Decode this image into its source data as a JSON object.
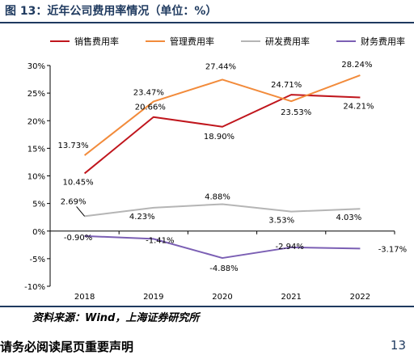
{
  "header": {
    "title": "图 13：近年公司费用率情况（单位：%）"
  },
  "footer": {
    "source": "资料来源：Wind，上海证券研究所",
    "notice": "请务必阅读尾页重要声明",
    "page": "13"
  },
  "chart_data": {
    "type": "line",
    "title": "",
    "xlabel": "",
    "ylabel": "",
    "categories": [
      "2018",
      "2019",
      "2020",
      "2021",
      "2022"
    ],
    "ylim": [
      -10,
      30
    ],
    "yticks": [
      "-10%",
      "-5%",
      "0%",
      "5%",
      "10%",
      "15%",
      "20%",
      "25%",
      "30%"
    ],
    "legend_position": "top",
    "series": [
      {
        "name": "销售费用率",
        "color": "#c0161d",
        "values": [
          10.45,
          20.66,
          18.9,
          24.71,
          24.21
        ],
        "labels": [
          "10.45%",
          "20.66%",
          "18.90%",
          "24.71%",
          "24.21%"
        ]
      },
      {
        "name": "管理费用率",
        "color": "#f28b3b",
        "values": [
          13.73,
          23.47,
          27.44,
          23.53,
          28.24
        ],
        "labels": [
          "13.73%",
          "23.47%",
          "27.44%",
          "23.53%",
          "28.24%"
        ]
      },
      {
        "name": "研发费用率",
        "color": "#b5b5b5",
        "values": [
          2.69,
          4.23,
          4.88,
          3.53,
          4.03
        ],
        "labels": [
          "2.69%",
          "4.23%",
          "4.88%",
          "3.53%",
          "4.03%"
        ]
      },
      {
        "name": "财务费用率",
        "color": "#7b5fb4",
        "values": [
          -0.9,
          -1.41,
          -4.88,
          -2.94,
          -3.17
        ],
        "labels": [
          "-0.90%",
          "-1.41%",
          "-4.88%",
          "-2.94%",
          "-3.17%"
        ]
      }
    ]
  }
}
